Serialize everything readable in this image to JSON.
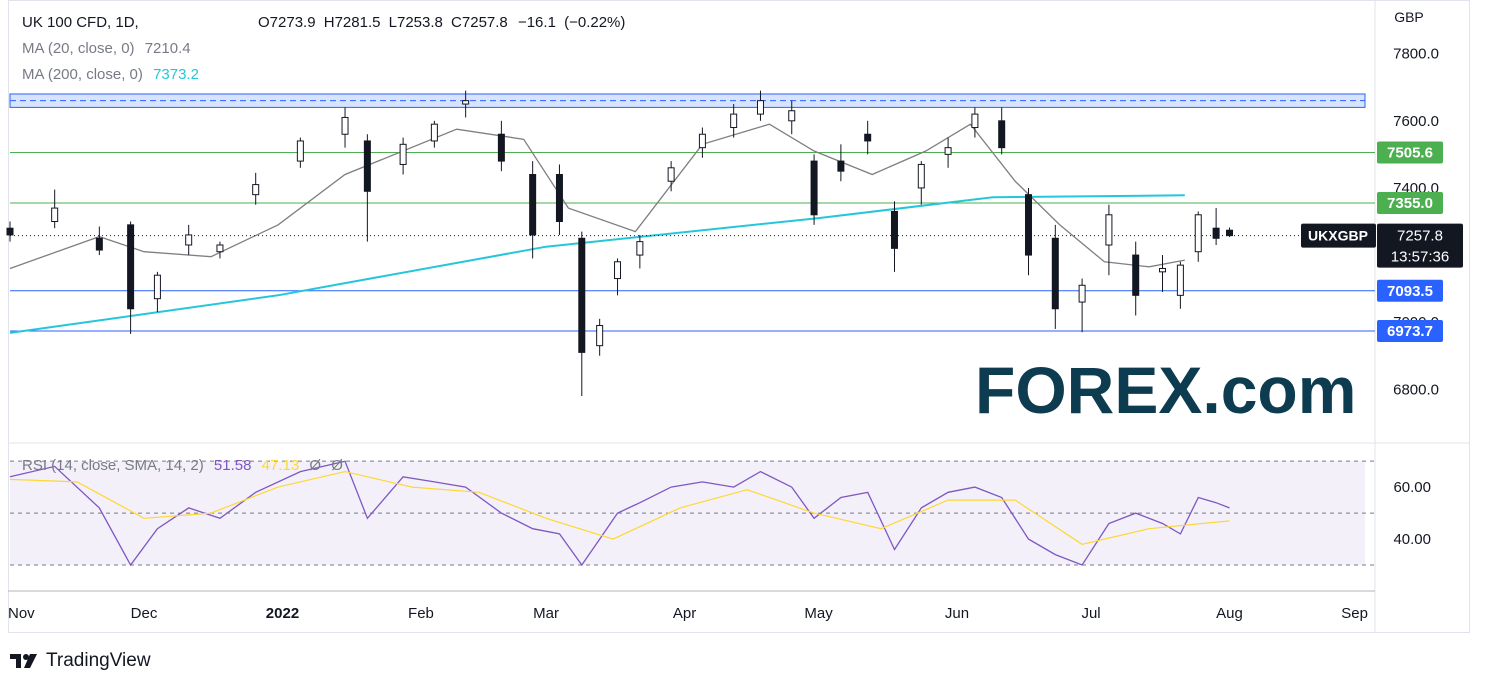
{
  "chart_data": [
    {
      "type": "candlestick",
      "symbol": "UK 100 CFD, 1D,",
      "ohlc": {
        "open_label": "O",
        "open": "7273.9",
        "high_label": "H",
        "high": "7281.5",
        "low_label": "L",
        "low": "7253.8",
        "close_label": "C",
        "close": "7257.8",
        "change": "−16.1",
        "change_pct": "(−0.22%)"
      },
      "currency": "GBP",
      "ylim": [
        6640,
        7960
      ],
      "y_ticks": [
        6800,
        7000,
        7200,
        7400,
        7600,
        7800
      ],
      "y_tick_labels": [
        "6800.0",
        "7000.0",
        "7200.0",
        "7400.0",
        "7600.0",
        "7800.0"
      ],
      "x_tick_labels": [
        "Nov",
        "Dec",
        "2022",
        "Feb",
        "Mar",
        "Apr",
        "May",
        "Jun",
        "Jul",
        "Aug",
        "Sep"
      ],
      "x_tick_days": [
        0,
        30,
        61,
        92,
        120,
        151,
        181,
        212,
        242,
        273,
        304
      ],
      "x_range_days": [
        0,
        304
      ],
      "grid": false,
      "indicators": [
        {
          "name": "MA (20, close, 0)",
          "value": "7210.4",
          "color": "#7f7f7f"
        },
        {
          "name": "MA (200, close, 0)",
          "value": "7373.2",
          "color": "#26c6da"
        }
      ],
      "ma200_line": [
        [
          0,
          6968
        ],
        [
          60,
          7080
        ],
        [
          120,
          7225
        ],
        [
          181,
          7310
        ],
        [
          220,
          7372
        ],
        [
          263,
          7378
        ]
      ],
      "ma20_line": [
        [
          0,
          7160
        ],
        [
          20,
          7255
        ],
        [
          30,
          7210
        ],
        [
          45,
          7195
        ],
        [
          60,
          7290
        ],
        [
          75,
          7440
        ],
        [
          100,
          7575
        ],
        [
          115,
          7545
        ],
        [
          125,
          7340
        ],
        [
          140,
          7270
        ],
        [
          155,
          7530
        ],
        [
          170,
          7590
        ],
        [
          180,
          7510
        ],
        [
          193,
          7440
        ],
        [
          205,
          7510
        ],
        [
          215,
          7590
        ],
        [
          225,
          7420
        ],
        [
          235,
          7290
        ],
        [
          245,
          7180
        ],
        [
          255,
          7165
        ],
        [
          263,
          7185
        ]
      ],
      "candles": [
        {
          "d": 0,
          "o": 7280,
          "h": 7300,
          "c": 7260,
          "l": 7240
        },
        {
          "d": 10,
          "o": 7300,
          "h": 7395,
          "c": 7340,
          "l": 7280
        },
        {
          "d": 20,
          "o": 7250,
          "h": 7285,
          "c": 7215,
          "l": 7200
        },
        {
          "d": 27,
          "o": 7290,
          "h": 7300,
          "c": 7040,
          "l": 6965
        },
        {
          "d": 33,
          "o": 7070,
          "h": 7150,
          "c": 7140,
          "l": 7030
        },
        {
          "d": 40,
          "o": 7230,
          "h": 7290,
          "c": 7260,
          "l": 7200
        },
        {
          "d": 47,
          "o": 7210,
          "h": 7240,
          "c": 7230,
          "l": 7190
        },
        {
          "d": 55,
          "o": 7380,
          "h": 7445,
          "c": 7410,
          "l": 7350
        },
        {
          "d": 65,
          "o": 7480,
          "h": 7550,
          "c": 7540,
          "l": 7460
        },
        {
          "d": 75,
          "o": 7560,
          "h": 7640,
          "c": 7610,
          "l": 7520
        },
        {
          "d": 80,
          "o": 7540,
          "h": 7560,
          "c": 7390,
          "l": 7240
        },
        {
          "d": 88,
          "o": 7470,
          "h": 7550,
          "c": 7530,
          "l": 7440
        },
        {
          "d": 95,
          "o": 7540,
          "h": 7600,
          "c": 7590,
          "l": 7520
        },
        {
          "d": 102,
          "o": 7650,
          "h": 7690,
          "c": 7660,
          "l": 7610
        },
        {
          "d": 110,
          "o": 7560,
          "h": 7600,
          "c": 7480,
          "l": 7450
        },
        {
          "d": 117,
          "o": 7440,
          "h": 7480,
          "c": 7260,
          "l": 7190
        },
        {
          "d": 123,
          "o": 7440,
          "h": 7470,
          "c": 7300,
          "l": 7260
        },
        {
          "d": 128,
          "o": 7250,
          "h": 7270,
          "c": 6910,
          "l": 6780
        },
        {
          "d": 132,
          "o": 6930,
          "h": 7010,
          "c": 6990,
          "l": 6900
        },
        {
          "d": 136,
          "o": 7130,
          "h": 7190,
          "c": 7180,
          "l": 7080
        },
        {
          "d": 141,
          "o": 7200,
          "h": 7260,
          "c": 7240,
          "l": 7160
        },
        {
          "d": 148,
          "o": 7420,
          "h": 7480,
          "c": 7460,
          "l": 7390
        },
        {
          "d": 155,
          "o": 7520,
          "h": 7580,
          "c": 7560,
          "l": 7490
        },
        {
          "d": 162,
          "o": 7580,
          "h": 7650,
          "c": 7620,
          "l": 7550
        },
        {
          "d": 168,
          "o": 7620,
          "h": 7690,
          "c": 7660,
          "l": 7600
        },
        {
          "d": 175,
          "o": 7600,
          "h": 7660,
          "c": 7630,
          "l": 7560
        },
        {
          "d": 180,
          "o": 7480,
          "h": 7500,
          "c": 7320,
          "l": 7290
        },
        {
          "d": 186,
          "o": 7480,
          "h": 7530,
          "c": 7450,
          "l": 7420
        },
        {
          "d": 192,
          "o": 7560,
          "h": 7600,
          "c": 7540,
          "l": 7500
        },
        {
          "d": 198,
          "o": 7330,
          "h": 7360,
          "c": 7220,
          "l": 7150
        },
        {
          "d": 204,
          "o": 7400,
          "h": 7480,
          "c": 7470,
          "l": 7350
        },
        {
          "d": 210,
          "o": 7500,
          "h": 7550,
          "c": 7520,
          "l": 7460
        },
        {
          "d": 216,
          "o": 7580,
          "h": 7640,
          "c": 7620,
          "l": 7550
        },
        {
          "d": 222,
          "o": 7600,
          "h": 7640,
          "c": 7520,
          "l": 7500
        },
        {
          "d": 228,
          "o": 7380,
          "h": 7400,
          "c": 7200,
          "l": 7140
        },
        {
          "d": 234,
          "o": 7250,
          "h": 7290,
          "c": 7040,
          "l": 6980
        },
        {
          "d": 240,
          "o": 7060,
          "h": 7130,
          "c": 7110,
          "l": 6970
        },
        {
          "d": 246,
          "o": 7230,
          "h": 7350,
          "c": 7320,
          "l": 7140
        },
        {
          "d": 252,
          "o": 7200,
          "h": 7240,
          "c": 7080,
          "l": 7020
        },
        {
          "d": 258,
          "o": 7150,
          "h": 7200,
          "c": 7160,
          "l": 7090
        },
        {
          "d": 262,
          "o": 7080,
          "h": 7180,
          "c": 7170,
          "l": 7040
        },
        {
          "d": 266,
          "o": 7210,
          "h": 7330,
          "c": 7320,
          "l": 7180
        },
        {
          "d": 270,
          "o": 7280,
          "h": 7340,
          "c": 7250,
          "l": 7230
        },
        {
          "d": 273,
          "o": 7274,
          "h": 7282,
          "c": 7258,
          "l": 7254
        }
      ],
      "horizontal_levels": [
        {
          "value": 7505.6,
          "label": "7505.6",
          "color": "#4caf50"
        },
        {
          "value": 7355.0,
          "label": "7355.0",
          "color": "#4caf50"
        },
        {
          "value": 7093.5,
          "label": "7093.5",
          "color": "#2962ff"
        },
        {
          "value": 6973.7,
          "label": "6973.7",
          "color": "#2962ff"
        }
      ],
      "resistance_zone": [
        7640,
        7680
      ],
      "last_price": {
        "symbol": "UKXGBP",
        "value": "7257.8",
        "countdown": "13:57:36",
        "y": 7257.8
      }
    },
    {
      "type": "line",
      "title": "RSI (14, close, SMA, 14, 2)",
      "values_label": [
        "51.58",
        "47.13",
        "Ø",
        "Ø"
      ],
      "ylim": [
        20,
        77
      ],
      "y_ticks": [
        40,
        60
      ],
      "y_tick_labels": [
        "40.00",
        "60.00"
      ],
      "bands": [
        70,
        50,
        30
      ],
      "series": [
        {
          "color": "#7e57c2",
          "x": [
            0,
            10,
            20,
            27,
            33,
            40,
            47,
            55,
            65,
            75,
            80,
            88,
            95,
            102,
            110,
            117,
            123,
            128,
            132,
            136,
            141,
            148,
            155,
            162,
            168,
            175,
            180,
            186,
            192,
            198,
            204,
            210,
            216,
            222,
            228,
            234,
            240,
            246,
            252,
            258,
            262,
            266,
            270,
            273
          ],
          "y": [
            64,
            68,
            52,
            30,
            44,
            52,
            48,
            58,
            66,
            70,
            48,
            64,
            62,
            60,
            50,
            44,
            42,
            30,
            40,
            50,
            54,
            60,
            62,
            60,
            66,
            60,
            48,
            56,
            58,
            36,
            52,
            58,
            60,
            56,
            40,
            34,
            30,
            46,
            50,
            46,
            42,
            56,
            54,
            52
          ]
        },
        {
          "color": "#fdd835",
          "x": [
            0,
            15,
            30,
            45,
            60,
            75,
            90,
            105,
            120,
            135,
            150,
            165,
            180,
            195,
            210,
            225,
            240,
            255,
            273
          ],
          "y": [
            63,
            62,
            48,
            50,
            60,
            66,
            60,
            58,
            48,
            40,
            52,
            59,
            50,
            44,
            55,
            55,
            38,
            44,
            47
          ]
        }
      ]
    }
  ],
  "watermark": "FOREX.com",
  "footer": {
    "brand": "TradingView",
    "logo_icon": "tradingview-logo-icon"
  }
}
